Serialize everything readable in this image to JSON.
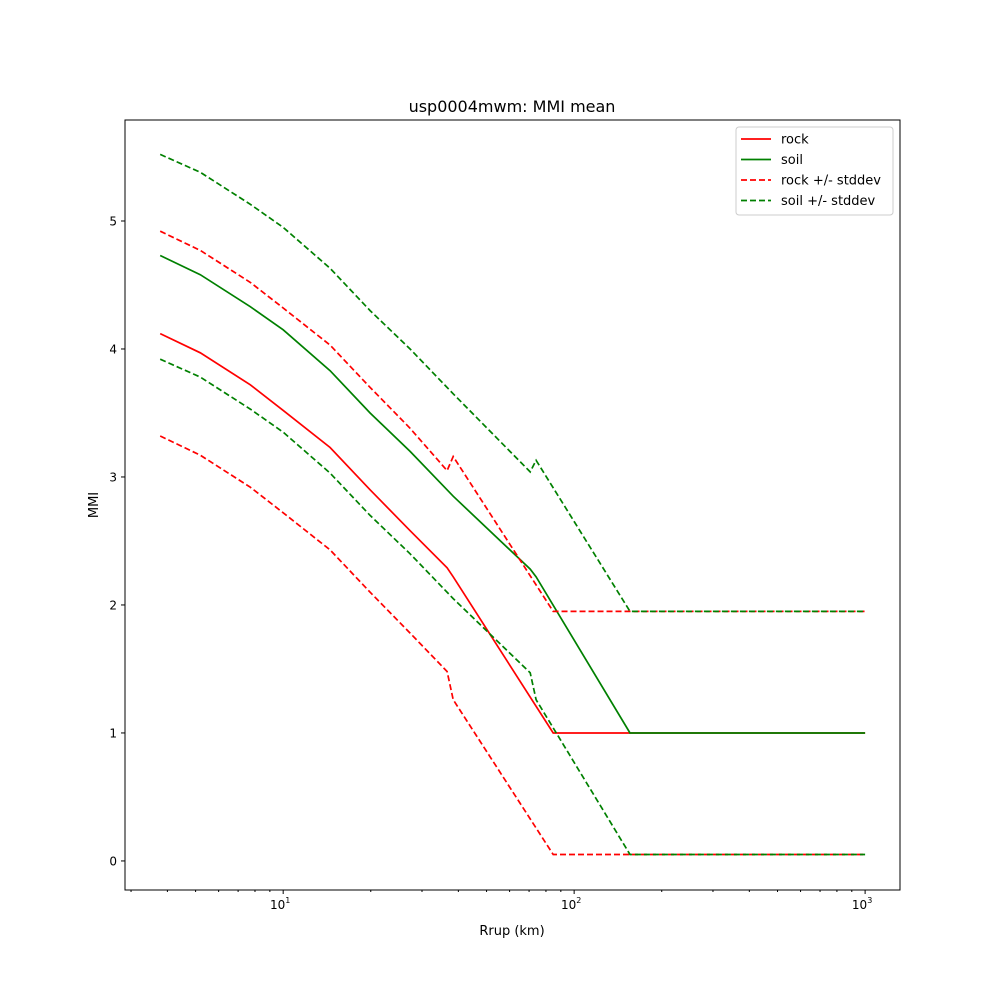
{
  "chart_data": {
    "type": "line",
    "title": "usp0004mwm: MMI mean",
    "xlabel": "Rrup (km)",
    "ylabel": "MMI",
    "xscale": "log",
    "xlim": [
      2.86,
      1318
    ],
    "ylim": [
      -0.227,
      5.789
    ],
    "xticks": [
      {
        "value": 10,
        "base": "10",
        "exp": "1"
      },
      {
        "value": 100,
        "base": "10",
        "exp": "2"
      },
      {
        "value": 1000,
        "base": "10",
        "exp": "3"
      }
    ],
    "yticks": [
      0,
      1,
      2,
      3,
      4,
      5
    ],
    "grid": false,
    "legend_position": "top-right",
    "series": [
      {
        "name": "rock",
        "color": "#ff0000",
        "dash": false,
        "x": [
          3.78,
          5.19,
          7.71,
          10,
          14.5,
          19.9,
          27.3,
          36.6,
          38.4,
          84.7,
          1000
        ],
        "y": [
          4.12,
          3.97,
          3.72,
          3.52,
          3.23,
          2.9,
          2.58,
          2.29,
          2.22,
          1.0,
          1.0
        ]
      },
      {
        "name": "soil",
        "color": "#008000",
        "dash": false,
        "x": [
          3.78,
          5.19,
          7.71,
          10,
          14.5,
          19.9,
          27.3,
          38.4,
          70.6,
          74.0,
          155.6,
          1000
        ],
        "y": [
          4.73,
          4.58,
          4.33,
          4.15,
          3.83,
          3.5,
          3.2,
          2.85,
          2.28,
          2.22,
          1.0,
          1.0
        ]
      },
      {
        "name": "rock +/- stddev",
        "color": "#ff0000",
        "dash": true,
        "x": [
          3.78,
          5.19,
          7.71,
          10,
          14.5,
          19.9,
          27.3,
          36.6,
          38.4,
          84.7,
          1000
        ],
        "y": [
          4.92,
          4.77,
          4.52,
          4.32,
          4.03,
          3.7,
          3.38,
          3.05,
          3.16,
          1.95,
          1.95
        ],
        "y_lower": [
          3.32,
          3.17,
          2.92,
          2.72,
          2.43,
          2.1,
          1.78,
          1.48,
          1.26,
          0.05,
          0.05
        ]
      },
      {
        "name": "soil +/- stddev",
        "color": "#008000",
        "dash": true,
        "x": [
          3.78,
          5.19,
          7.71,
          10,
          14.5,
          19.9,
          27.3,
          38.4,
          70.6,
          74.0,
          155.6,
          1000
        ],
        "y": [
          5.52,
          5.38,
          5.13,
          4.95,
          4.63,
          4.3,
          4.0,
          3.65,
          3.04,
          3.13,
          1.95,
          1.95
        ],
        "y_lower": [
          3.92,
          3.78,
          3.53,
          3.35,
          3.03,
          2.7,
          2.4,
          2.05,
          1.47,
          1.26,
          0.05,
          0.05
        ]
      }
    ]
  }
}
